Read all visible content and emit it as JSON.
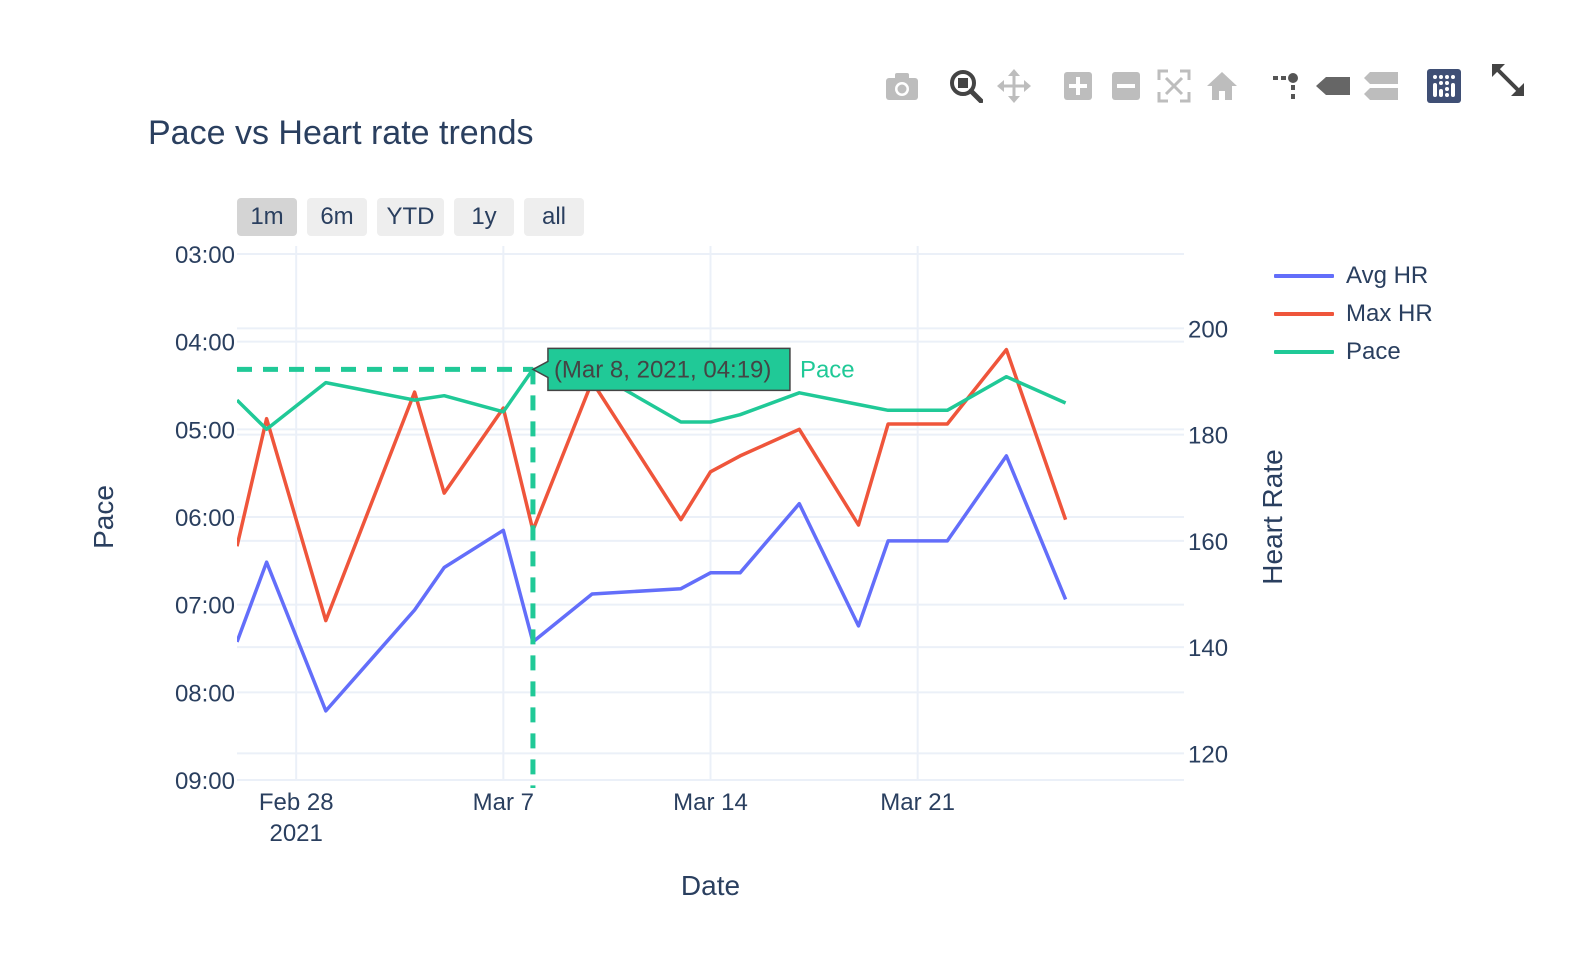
{
  "modebar": {
    "buttons": [
      {
        "icon": "camera-icon",
        "name": "download-plot-button",
        "active": false
      },
      {
        "icon": "zoom-icon",
        "name": "zoom-button",
        "active": true
      },
      {
        "icon": "pan-icon",
        "name": "pan-button",
        "active": false
      },
      {
        "icon": "zoom-in-icon",
        "name": "zoom-in-button",
        "active": false
      },
      {
        "icon": "zoom-out-icon",
        "name": "zoom-out-button",
        "active": false
      },
      {
        "icon": "autoscale-icon",
        "name": "autoscale-button",
        "active": false
      },
      {
        "icon": "home-icon",
        "name": "reset-axes-button",
        "active": false
      },
      {
        "icon": "spikelines-icon",
        "name": "toggle-spike-lines-button",
        "active": false
      },
      {
        "icon": "hover-closest-icon",
        "name": "hover-closest-button",
        "active": false
      },
      {
        "icon": "hover-compare-icon",
        "name": "hover-compare-button",
        "active": false
      },
      {
        "icon": "plotly-logo-icon",
        "name": "plotly-logo-button",
        "active": false
      },
      {
        "icon": "fullscreen-icon",
        "name": "fullscreen-button",
        "active": false
      }
    ]
  },
  "range_selector": {
    "buttons": [
      "1m",
      "6m",
      "YTD",
      "1y",
      "all"
    ],
    "active": "1m"
  },
  "colors": {
    "avg_hr": "#636efa",
    "max_hr": "#ef553b",
    "pace": "#20c997",
    "text": "#2a3f5f",
    "grid": "#ebf0f8"
  },
  "chart_data": {
    "type": "line",
    "title": "Pace vs Heart rate trends",
    "xlabel": "Date",
    "ylabel": "Pace",
    "y2label": "Heart Rate",
    "x_tick_labels": [
      {
        "date": "2021-02-28",
        "label": "Feb 28",
        "sub": "2021"
      },
      {
        "date": "2021-03-07",
        "label": "Mar 7",
        "sub": ""
      },
      {
        "date": "2021-03-14",
        "label": "Mar 14",
        "sub": ""
      },
      {
        "date": "2021-03-21",
        "label": "Mar 21",
        "sub": ""
      }
    ],
    "xlim": [
      "2021-02-26",
      "2021-03-30"
    ],
    "y_pace_reversed": true,
    "y_pace_lim": [
      "03:00",
      "09:00"
    ],
    "y_pace_ticks": [
      "03:00",
      "04:00",
      "05:00",
      "06:00",
      "07:00",
      "08:00",
      "09:00"
    ],
    "y_hr_lim": [
      115,
      214
    ],
    "y_hr_ticks": [
      120,
      140,
      160,
      180,
      200
    ],
    "grid": true,
    "legend_position": "top-right",
    "series": [
      {
        "name": "Avg HR",
        "axis": "right",
        "x": [
          "2021-02-26",
          "2021-02-27",
          "2021-03-01",
          "2021-03-04",
          "2021-03-05",
          "2021-03-07",
          "2021-03-08",
          "2021-03-10",
          "2021-03-13",
          "2021-03-14",
          "2021-03-15",
          "2021-03-17",
          "2021-03-19",
          "2021-03-20",
          "2021-03-22",
          "2021-03-24",
          "2021-03-26"
        ],
        "values": [
          141,
          156,
          128,
          147,
          155,
          162,
          141,
          150,
          151,
          154,
          154,
          167,
          144,
          160,
          160,
          176,
          149
        ]
      },
      {
        "name": "Max HR",
        "axis": "right",
        "x": [
          "2021-02-26",
          "2021-02-27",
          "2021-03-01",
          "2021-03-04",
          "2021-03-05",
          "2021-03-07",
          "2021-03-08",
          "2021-03-10",
          "2021-03-13",
          "2021-03-14",
          "2021-03-15",
          "2021-03-17",
          "2021-03-19",
          "2021-03-20",
          "2021-03-22",
          "2021-03-24",
          "2021-03-26"
        ],
        "values": [
          159,
          183,
          145,
          188,
          169,
          185,
          162,
          190,
          164,
          173,
          176,
          181,
          163,
          182,
          182,
          196,
          164
        ]
      },
      {
        "name": "Pace",
        "axis": "left",
        "x": [
          "2021-02-26",
          "2021-02-27",
          "2021-03-01",
          "2021-03-04",
          "2021-03-05",
          "2021-03-07",
          "2021-03-08",
          "2021-03-10",
          "2021-03-13",
          "2021-03-14",
          "2021-03-15",
          "2021-03-17",
          "2021-03-19",
          "2021-03-20",
          "2021-03-22",
          "2021-03-24",
          "2021-03-26"
        ],
        "values": [
          "04:40",
          "05:00",
          "04:28",
          "04:40",
          "04:37",
          "04:48",
          "04:19",
          "04:20",
          "04:55",
          "04:55",
          "04:50",
          "04:35",
          "04:43",
          "04:47",
          "04:47",
          "04:24",
          "04:42"
        ]
      }
    ],
    "hover": {
      "date": "2021-03-08",
      "pace": "04:19",
      "label": "(Mar 8, 2021, 04:19)",
      "series": "Pace"
    }
  }
}
